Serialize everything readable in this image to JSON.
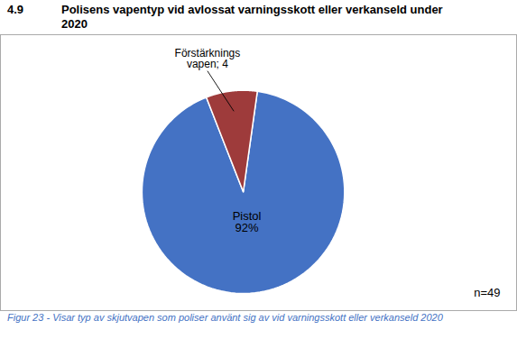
{
  "chart_data": {
    "type": "pie",
    "title": "4.9",
    "subtitle": "Polisens vapentyp vid avlossat varningsskott eller verkanseld under\n2020",
    "categories": [
      "Pistol\n92%",
      "Förstärknings\nvapen; 4"
    ],
    "values": [
      45,
      4
    ],
    "colors": [
      "#4472C4",
      "#9E3B3B"
    ],
    "annotations": [
      "n=49"
    ],
    "caption": "Figur 23 - Visar typ av skjutvapen som poliser använt sig av vid varningsskott eller verkanseld 2020"
  }
}
